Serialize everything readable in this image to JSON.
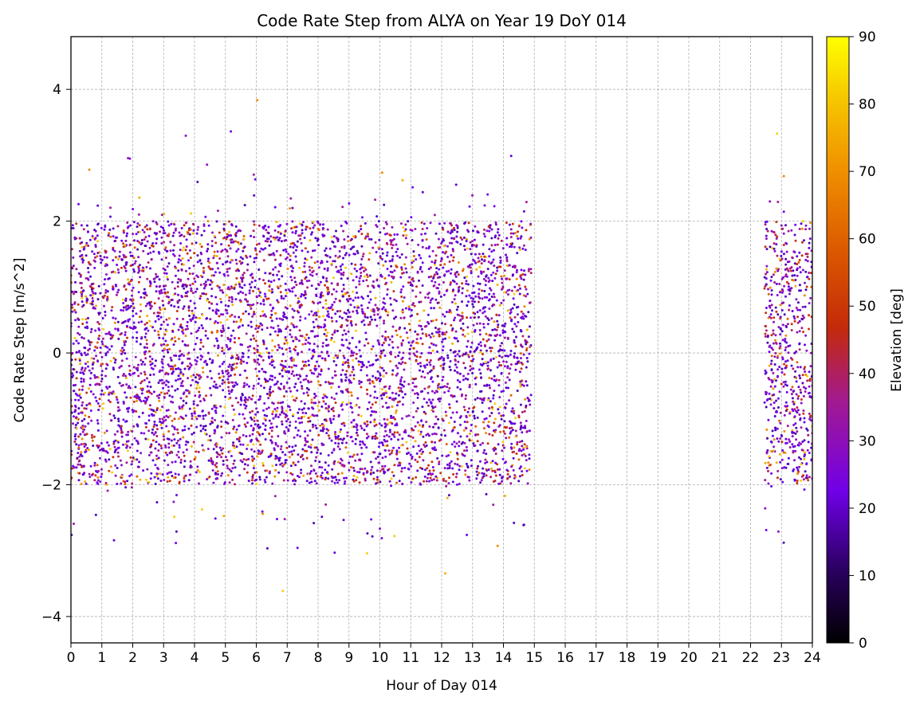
{
  "chart_data": {
    "type": "scatter",
    "title": "Code Rate Step from ALYA on Year 19 DoY 014",
    "xlabel": "Hour of Day 014",
    "ylabel": "Code Rate Step [m/s^2]",
    "xlim": [
      0,
      24
    ],
    "ylim": [
      -4.4,
      4.8
    ],
    "x_ticks": [
      0,
      1,
      2,
      3,
      4,
      5,
      6,
      7,
      8,
      9,
      10,
      11,
      12,
      13,
      14,
      15,
      16,
      17,
      18,
      19,
      20,
      21,
      22,
      23,
      24
    ],
    "x_tick_labels": [
      "0",
      "1",
      "2",
      "3",
      "4",
      "5",
      "6",
      "7",
      "8",
      "9",
      "10",
      "11",
      "12",
      "13",
      "14",
      "15",
      "16",
      "17",
      "18",
      "19",
      "20",
      "21",
      "22",
      "23",
      "24"
    ],
    "y_ticks": [
      -4,
      -2,
      0,
      2,
      4
    ],
    "y_tick_labels": [
      "−4",
      "−2",
      "0",
      "2",
      "4"
    ],
    "grid": true,
    "color_by": "elevation",
    "colorbar": {
      "label": "Elevation [deg]",
      "colormap": "gnuplot",
      "range": [
        0,
        90
      ],
      "ticks": [
        0,
        10,
        20,
        30,
        40,
        50,
        60,
        70,
        80,
        90
      ],
      "tick_labels": [
        "0",
        "10",
        "20",
        "30",
        "40",
        "50",
        "60",
        "70",
        "80",
        "90"
      ]
    },
    "data_segments": [
      {
        "x_range": [
          0.0,
          14.9
        ],
        "core_y_range": [
          -2.0,
          2.0
        ],
        "outlier_y_range": [
          -3.9,
          4.4
        ]
      },
      {
        "x_range": [
          22.45,
          24.0
        ],
        "core_y_range": [
          -2.0,
          2.0
        ],
        "outlier_y_range": [
          -3.3,
          3.8
        ]
      }
    ],
    "colors": {
      "low_elevation": "#5a00c8",
      "mid_elevation": "#a4149a",
      "high_elevation": "#f0b400",
      "grid": "#b0b0b0"
    }
  }
}
